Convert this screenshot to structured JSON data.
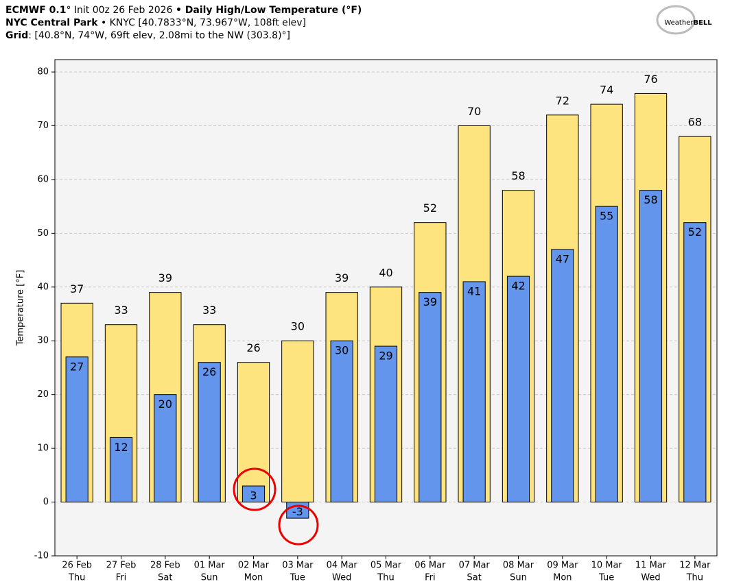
{
  "header_lines": [
    [
      {
        "text": "ECMWF 0.1",
        "bold": true
      },
      {
        "text": "° Init 00z 26 Feb 2026 ",
        "bold": false
      },
      {
        "text": "• Daily High/Low Temperature (°F)",
        "bold": true
      }
    ],
    [
      {
        "text": "NYC Central Park",
        "bold": true
      },
      {
        "text": " • KNYC [40.7833°N, 73.967°W, 108ft elev]",
        "bold": false
      }
    ],
    [
      {
        "text": "Grid",
        "bold": true
      },
      {
        "text": ": [40.8°N, 74°W, 69ft elev, 2.08mi to the NW (303.8)°]",
        "bold": false
      }
    ]
  ],
  "logo": {
    "prefix": "Weather",
    "suffix": "BELL"
  },
  "chart_data": {
    "type": "bar",
    "y_label": "Temperature [°F]",
    "categories": [
      [
        "26 Feb",
        "Thu"
      ],
      [
        "27 Feb",
        "Fri"
      ],
      [
        "28 Feb",
        "Sat"
      ],
      [
        "01 Mar",
        "Sun"
      ],
      [
        "02 Mar",
        "Mon"
      ],
      [
        "03 Mar",
        "Tue"
      ],
      [
        "04 Mar",
        "Wed"
      ],
      [
        "05 Mar",
        "Thu"
      ],
      [
        "06 Mar",
        "Fri"
      ],
      [
        "07 Mar",
        "Sat"
      ],
      [
        "08 Mar",
        "Sun"
      ],
      [
        "09 Mar",
        "Mon"
      ],
      [
        "10 Mar",
        "Tue"
      ],
      [
        "11 Mar",
        "Wed"
      ],
      [
        "12 Mar",
        "Thu"
      ]
    ],
    "series": [
      {
        "color": "#fde47f",
        "values": [
          37,
          33,
          39,
          33,
          26,
          30,
          39,
          40,
          52,
          70,
          58,
          72,
          74,
          76,
          68
        ],
        "label_position": "above",
        "width": 0.72
      },
      {
        "color": "#6495ed",
        "values": [
          27,
          12,
          20,
          26,
          3,
          -3,
          30,
          29,
          39,
          41,
          42,
          47,
          55,
          58,
          52
        ],
        "label_position": "inside",
        "width": 0.5
      }
    ],
    "ylim": [
      -10,
      82.3
    ],
    "yticks": [
      -10,
      0,
      10,
      20,
      30,
      40,
      50,
      60,
      70,
      80
    ],
    "grid": true
  }
}
